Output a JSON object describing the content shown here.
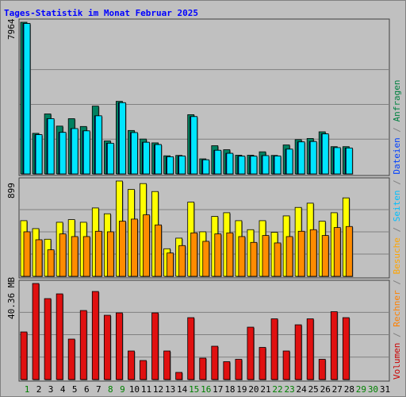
{
  "title": "Tages-Statistik im Monat Februar 2025",
  "right_legend": [
    {
      "text": "Volumen",
      "color": "#cc0000"
    },
    {
      "text": " / ",
      "color": "#808080"
    },
    {
      "text": "Rechner",
      "color": "#ff8000"
    },
    {
      "text": " / ",
      "color": "#808080"
    },
    {
      "text": "Besuche",
      "color": "#ffa500"
    },
    {
      "text": " / ",
      "color": "#808080"
    },
    {
      "text": "Seiten",
      "color": "#00bfff"
    },
    {
      "text": " / ",
      "color": "#808080"
    },
    {
      "text": "Dateien",
      "color": "#0040ff"
    },
    {
      "text": " / ",
      "color": "#808080"
    },
    {
      "text": "Anfragen",
      "color": "#008040"
    }
  ],
  "colors": {
    "anfragen": "#008060",
    "dateien": "#0000ff",
    "seiten": "#00e5ff",
    "besuche": "#ffff00",
    "rechner": "#ff8c00",
    "volumen": "#e01010",
    "weekday_label": "#000000",
    "weekend_label": "#008000"
  },
  "chart_data": [
    {
      "type": "bar",
      "panel": "top",
      "max_label": "7964",
      "ylim": [
        0,
        7964
      ],
      "categories": [
        "1",
        "2",
        "3",
        "4",
        "5",
        "6",
        "7",
        "8",
        "9",
        "10",
        "11",
        "12",
        "13",
        "14",
        "15",
        "16",
        "17",
        "18",
        "19",
        "20",
        "21",
        "22",
        "23",
        "24",
        "25",
        "26",
        "27",
        "28",
        "29",
        "30",
        "31"
      ],
      "series": [
        {
          "name": "Anfragen",
          "values": [
            7964,
            2130,
            3150,
            2510,
            2900,
            2490,
            3560,
            1730,
            3810,
            2280,
            1830,
            1630,
            950,
            970,
            3110,
            790,
            1480,
            1270,
            980,
            980,
            1160,
            970,
            1520,
            1800,
            1860,
            2210,
            1430,
            1430,
            0,
            0,
            0
          ]
        },
        {
          "name": "Dateien",
          "values": [
            7900,
            2060,
            2900,
            2180,
            2380,
            2260,
            3050,
            1610,
            3740,
            2170,
            1660,
            1540,
            900,
            940,
            3010,
            740,
            1240,
            1080,
            930,
            930,
            960,
            940,
            1300,
            1680,
            1700,
            2100,
            1380,
            1360,
            0,
            0,
            0
          ]
        },
        {
          "name": "Seiten",
          "values": [
            7900,
            2060,
            2900,
            2180,
            2380,
            2260,
            3050,
            1610,
            3740,
            2170,
            1660,
            1540,
            900,
            940,
            3010,
            740,
            1240,
            1080,
            930,
            930,
            960,
            940,
            1300,
            1680,
            1700,
            2100,
            1380,
            1360,
            0,
            0,
            0
          ]
        }
      ]
    },
    {
      "type": "bar",
      "panel": "middle",
      "max_label": "899",
      "ylim": [
        0,
        899
      ],
      "categories": [
        "1",
        "2",
        "3",
        "4",
        "5",
        "6",
        "7",
        "8",
        "9",
        "10",
        "11",
        "12",
        "13",
        "14",
        "15",
        "16",
        "17",
        "18",
        "19",
        "20",
        "21",
        "22",
        "23",
        "24",
        "25",
        "26",
        "27",
        "28",
        "29",
        "30",
        "31"
      ],
      "series": [
        {
          "name": "Besuche",
          "values": [
            525,
            450,
            350,
            510,
            535,
            510,
            645,
            590,
            899,
            820,
            875,
            800,
            260,
            360,
            700,
            420,
            565,
            600,
            525,
            440,
            525,
            415,
            570,
            650,
            690,
            520,
            600,
            740,
            0,
            0,
            0
          ]
        },
        {
          "name": "Rechner",
          "values": [
            420,
            345,
            250,
            400,
            375,
            375,
            425,
            420,
            520,
            540,
            580,
            485,
            220,
            290,
            410,
            330,
            400,
            410,
            375,
            320,
            385,
            315,
            375,
            425,
            440,
            385,
            460,
            470,
            0,
            0,
            0
          ]
        }
      ]
    },
    {
      "type": "bar",
      "panel": "bottom",
      "max_label": "40.36 MB",
      "ylim": [
        0,
        40.36
      ],
      "categories": [
        "1",
        "2",
        "3",
        "4",
        "5",
        "6",
        "7",
        "8",
        "9",
        "10",
        "11",
        "12",
        "13",
        "14",
        "15",
        "16",
        "17",
        "18",
        "19",
        "20",
        "21",
        "22",
        "23",
        "24",
        "25",
        "26",
        "27",
        "28",
        "29",
        "30",
        "31"
      ],
      "series": [
        {
          "name": "Volumen",
          "values": [
            20,
            40.36,
            34,
            36,
            17,
            29,
            37,
            27,
            28,
            12,
            8,
            28,
            12,
            3,
            26,
            9,
            14,
            7.5,
            8.5,
            22,
            13.5,
            25.5,
            12,
            23,
            25.5,
            8.5,
            28.5,
            26,
            0,
            0,
            0
          ]
        }
      ]
    }
  ],
  "weekend_days": [
    "1",
    "8",
    "9",
    "15",
    "16",
    "22",
    "23",
    "29",
    "30"
  ]
}
